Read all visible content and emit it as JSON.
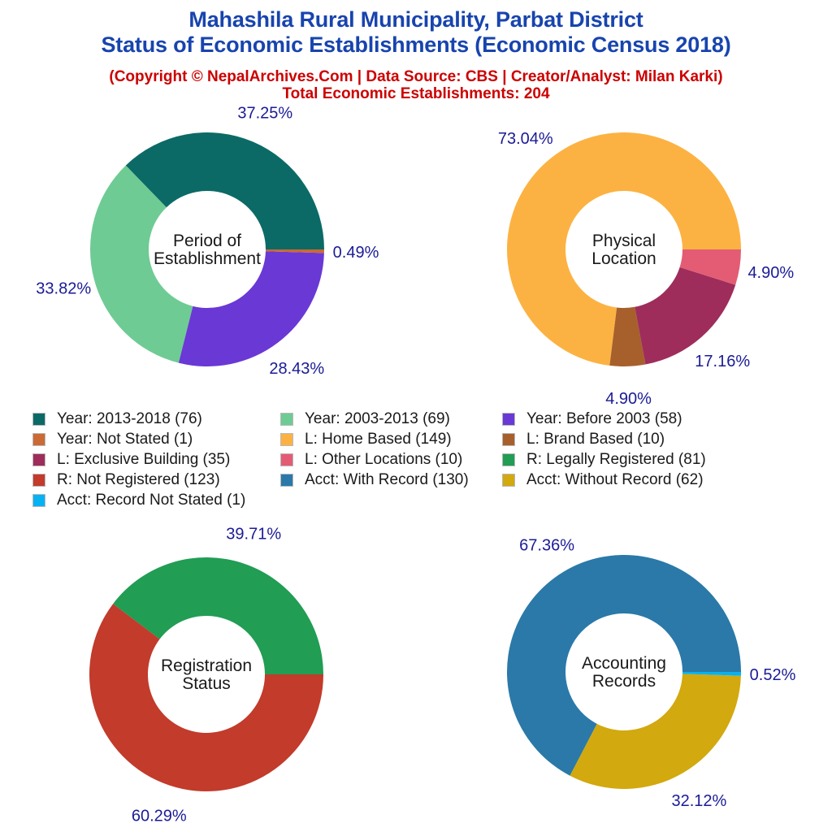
{
  "header": {
    "title_line1": "Mahashila Rural Municipality, Parbat District",
    "title_line2": "Status of Economic Establishments (Economic Census 2018)",
    "copyright": "(Copyright © NepalArchives.Com | Data Source: CBS | Creator/Analyst: Milan Karki)",
    "total": "Total Economic Establishments: 204"
  },
  "colors": {
    "title": "#1844ae",
    "subtitle": "#cc0000",
    "percent_label": "#1b1b96",
    "center_label": "#1a1a1a"
  },
  "chart_data": [
    {
      "type": "donut",
      "id": "period-of-establishment",
      "center_label_lines": [
        "Period of",
        "Establishment"
      ],
      "start_angle_deg": 0,
      "direction": "counterclockwise",
      "slices": [
        {
          "label": "Year: 2013-2018",
          "value": 76,
          "pct_label": "37.25%",
          "color": "#0b6a66"
        },
        {
          "label": "Year: 2003-2013",
          "value": 69,
          "pct_label": "33.82%",
          "color": "#6ecb94"
        },
        {
          "label": "Year: Before 2003",
          "value": 58,
          "pct_label": "28.43%",
          "color": "#6a38d5"
        },
        {
          "label": "Year: Not Stated",
          "value": 1,
          "pct_label": "0.49%",
          "color": "#ca6a34"
        }
      ]
    },
    {
      "type": "donut",
      "id": "physical-location",
      "center_label_lines": [
        "Physical",
        "Location"
      ],
      "start_angle_deg": 0,
      "direction": "counterclockwise",
      "slices": [
        {
          "label": "L: Home Based",
          "value": 149,
          "pct_label": "73.04%",
          "color": "#fcb242"
        },
        {
          "label": "L: Brand Based",
          "value": 10,
          "pct_label": "4.90%",
          "color": "#a7602c"
        },
        {
          "label": "L: Exclusive Building",
          "value": 35,
          "pct_label": "17.16%",
          "color": "#9e2d5b"
        },
        {
          "label": "L: Other Locations",
          "value": 10,
          "pct_label": "4.90%",
          "color": "#e35c74"
        }
      ]
    },
    {
      "type": "donut",
      "id": "registration-status",
      "center_label_lines": [
        "Registration",
        "Status"
      ],
      "start_angle_deg": 0,
      "direction": "counterclockwise",
      "slices": [
        {
          "label": "R: Legally Registered",
          "value": 81,
          "pct_label": "39.71%",
          "color": "#219d54"
        },
        {
          "label": "R: Not Registered",
          "value": 123,
          "pct_label": "60.29%",
          "color": "#c23b2b"
        }
      ]
    },
    {
      "type": "donut",
      "id": "accounting-records",
      "center_label_lines": [
        "Accounting",
        "Records"
      ],
      "start_angle_deg": 0,
      "direction": "counterclockwise",
      "slices": [
        {
          "label": "Acct: With Record",
          "value": 130,
          "pct_label": "67.36%",
          "color": "#2a79a9"
        },
        {
          "label": "Acct: Without Record",
          "value": 62,
          "pct_label": "32.12%",
          "color": "#d2a90e"
        },
        {
          "label": "Acct: Record Not Stated",
          "value": 1,
          "pct_label": "0.52%",
          "color": "#06b2f1"
        }
      ]
    }
  ],
  "legend": {
    "columns": [
      [
        {
          "label": "Year: 2013-2018 (76)",
          "color": "#0b6a66"
        },
        {
          "label": "Year: Not Stated (1)",
          "color": "#ca6a34"
        },
        {
          "label": "L: Exclusive Building (35)",
          "color": "#9e2d5b"
        },
        {
          "label": "R: Not Registered (123)",
          "color": "#c23b2b"
        },
        {
          "label": "Acct: Record Not Stated (1)",
          "color": "#06b2f1"
        }
      ],
      [
        {
          "label": "Year: 2003-2013 (69)",
          "color": "#6ecb94"
        },
        {
          "label": "L: Home Based (149)",
          "color": "#fcb242"
        },
        {
          "label": "L: Other Locations (10)",
          "color": "#e35c74"
        },
        {
          "label": "Acct: With Record (130)",
          "color": "#2a79a9"
        }
      ],
      [
        {
          "label": "Year: Before 2003 (58)",
          "color": "#6a38d5"
        },
        {
          "label": "L: Brand Based (10)",
          "color": "#a7602c"
        },
        {
          "label": "R: Legally Registered (81)",
          "color": "#219d54"
        },
        {
          "label": "Acct: Without Record (62)",
          "color": "#d2a90e"
        }
      ]
    ]
  }
}
